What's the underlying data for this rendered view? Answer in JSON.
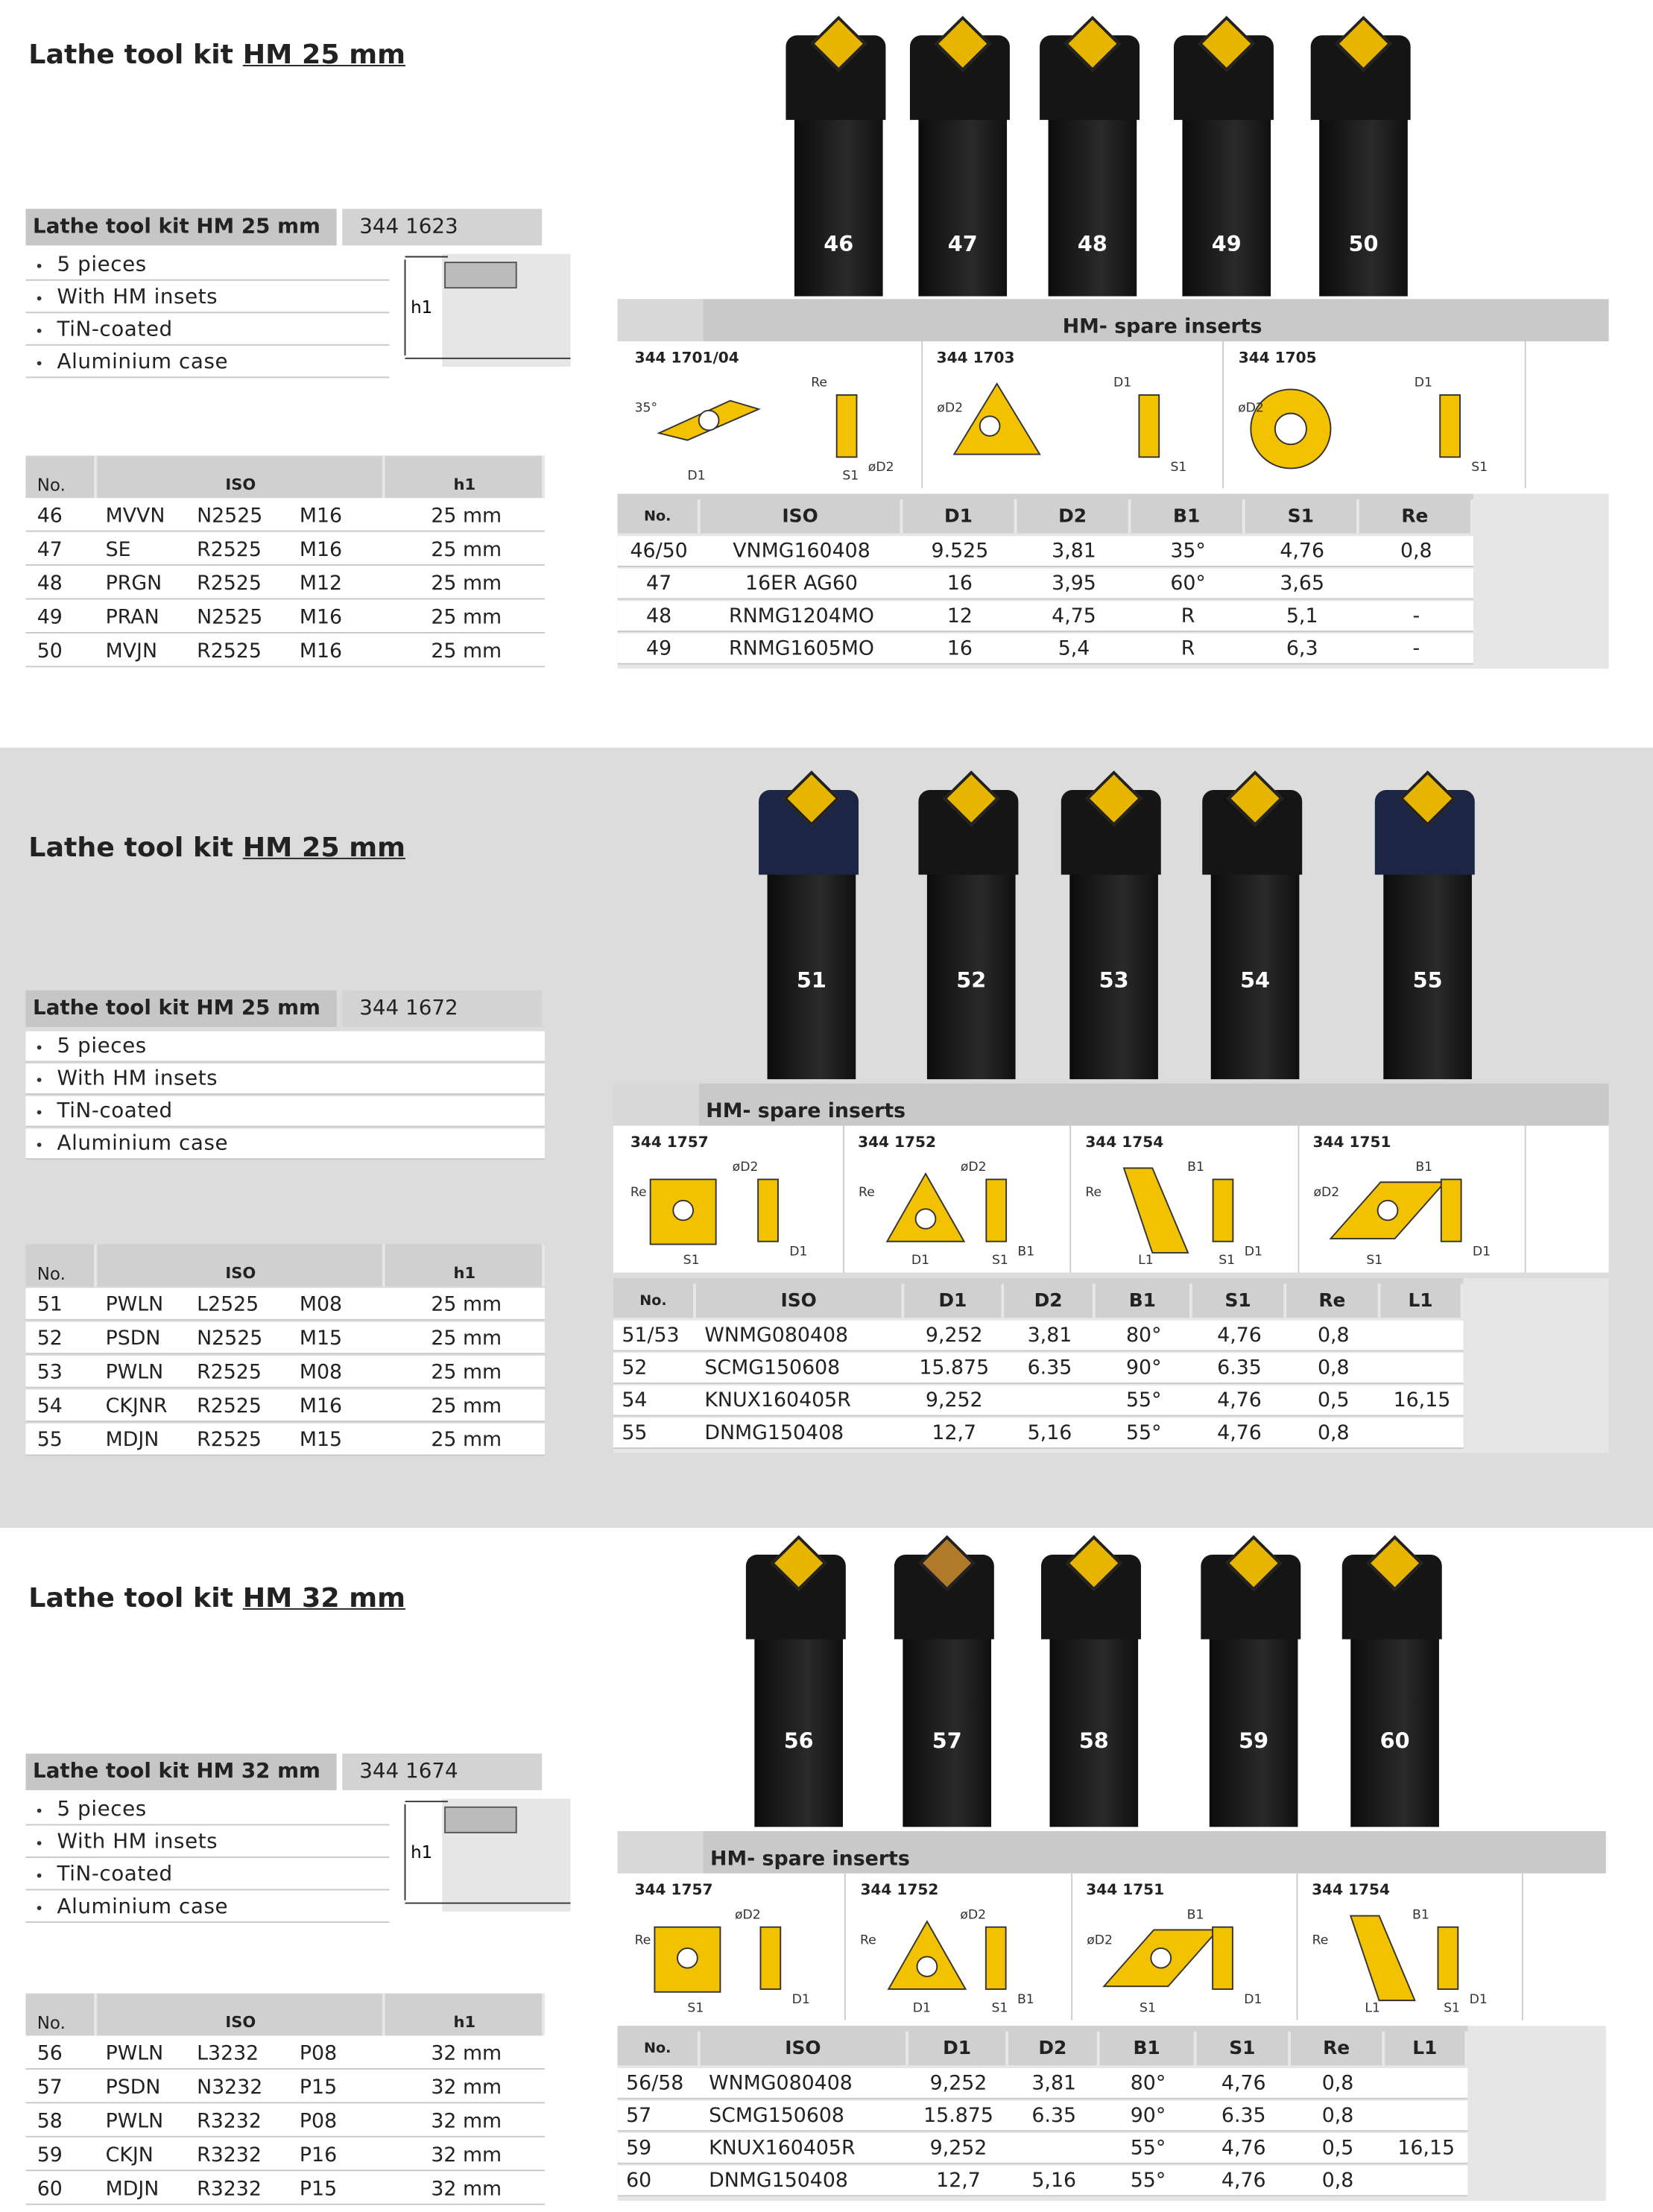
{
  "sections": [
    {
      "title_prefix": "Lathe tool kit",
      "title_size": "HM 25 mm",
      "kit": {
        "name": "Lathe tool kit HM 25 mm",
        "article": "344 1623",
        "features": [
          "5 pieces",
          "With HM insets",
          "TiN-coated",
          "Aluminium case"
        ],
        "h_label": "h1"
      },
      "tools": {
        "headers": [
          "No.",
          "ISO",
          "h1"
        ],
        "rows": [
          [
            "46",
            "MVVN",
            "N2525",
            "M16",
            "25 mm"
          ],
          [
            "47",
            "SE",
            "R2525",
            "M16",
            "25 mm"
          ],
          [
            "48",
            "PRGN",
            "R2525",
            "M12",
            "25 mm"
          ],
          [
            "49",
            "PRAN",
            "N2525",
            "M16",
            "25 mm"
          ],
          [
            "50",
            "MVJN",
            "R2525",
            "M16",
            "25 mm"
          ]
        ]
      },
      "tool_labels": [
        "46",
        "47",
        "48",
        "49",
        "50"
      ],
      "inserts": {
        "header": "HM- spare inserts",
        "drawings": [
          {
            "code": "344 1701/04",
            "labels": [
              "35°",
              "Re",
              "øD2",
              "D1",
              "S1"
            ]
          },
          {
            "code": "344 1703",
            "labels": [
              "øD2",
              "D1",
              "S1"
            ]
          },
          {
            "code": "344 1705",
            "labels": [
              "øD2",
              "D1",
              "S1"
            ]
          }
        ],
        "headers": [
          "No.",
          "ISO",
          "D1",
          "D2",
          "B1",
          "S1",
          "Re"
        ],
        "rows": [
          [
            "46/50",
            "VNMG160408",
            "9.525",
            "3,81",
            "35°",
            "4,76",
            "0,8"
          ],
          [
            "47",
            "16ER AG60",
            "16",
            "3,95",
            "60°",
            "3,65",
            null
          ],
          [
            "48",
            "RNMG1204MO",
            "12",
            "4,75",
            "R",
            "5,1",
            "-"
          ],
          [
            "49",
            "RNMG1605MO",
            "16",
            "5,4",
            "R",
            "6,3",
            "-"
          ]
        ]
      }
    },
    {
      "title_prefix": "Lathe tool kit",
      "title_size": "HM 25 mm",
      "kit": {
        "name": "Lathe tool kit HM 25 mm",
        "article": "344 1672",
        "features": [
          "5 pieces",
          "With HM insets",
          "TiN-coated",
          "Aluminium case"
        ]
      },
      "tools": {
        "headers": [
          "No.",
          "ISO",
          "h1"
        ],
        "rows": [
          [
            "51",
            "PWLN",
            "L2525",
            "M08",
            "25 mm"
          ],
          [
            "52",
            "PSDN",
            "N2525",
            "M15",
            "25 mm"
          ],
          [
            "53",
            "PWLN",
            "R2525",
            "M08",
            "25 mm"
          ],
          [
            "54",
            "CKJNR",
            "R2525",
            "M16",
            "25 mm"
          ],
          [
            "55",
            "MDJN",
            "R2525",
            "M15",
            "25 mm"
          ]
        ]
      },
      "tool_labels": [
        "51",
        "52",
        "53",
        "54",
        "55"
      ],
      "inserts": {
        "header": "HM- spare inserts",
        "drawings": [
          {
            "code": "344 1757",
            "labels": [
              "Re",
              "øD2",
              "D1",
              "S1"
            ]
          },
          {
            "code": "344 1752",
            "labels": [
              "Re",
              "øD2",
              "B1",
              "D1",
              "S1"
            ]
          },
          {
            "code": "344 1754",
            "labels": [
              "Re",
              "B1",
              "D1",
              "L1",
              "S1"
            ]
          },
          {
            "code": "344 1751",
            "labels": [
              "øD2",
              "B1",
              "D1",
              "S1"
            ]
          }
        ],
        "headers": [
          "No.",
          "ISO",
          "D1",
          "D2",
          "B1",
          "S1",
          "Re",
          "L1"
        ],
        "rows": [
          [
            "51/53",
            "WNMG080408",
            "9,252",
            "3,81",
            "80°",
            "4,76",
            "0,8",
            null
          ],
          [
            "52",
            "SCMG150608",
            "15.875",
            "6.35",
            "90°",
            "6.35",
            "0,8",
            null
          ],
          [
            "54",
            "KNUX160405R",
            "9,252",
            null,
            "55°",
            "4,76",
            "0,5",
            "16,15"
          ],
          [
            "55",
            "DNMG150408",
            "12,7",
            "5,16",
            "55°",
            "4,76",
            "0,8",
            null
          ]
        ]
      }
    },
    {
      "title_prefix": "Lathe tool kit",
      "title_size": "HM 32 mm",
      "kit": {
        "name": "Lathe tool kit HM 32 mm",
        "article": "344 1674",
        "features": [
          "5 pieces",
          "With HM insets",
          "TiN-coated",
          "Aluminium case"
        ],
        "h_label": "h1"
      },
      "tools": {
        "headers": [
          "No.",
          "ISO",
          "h1"
        ],
        "rows": [
          [
            "56",
            "PWLN",
            "L3232",
            "P08",
            "32 mm"
          ],
          [
            "57",
            "PSDN",
            "N3232",
            "P15",
            "32 mm"
          ],
          [
            "58",
            "PWLN",
            "R3232",
            "P08",
            "32 mm"
          ],
          [
            "59",
            "CKJN",
            "R3232",
            "P16",
            "32 mm"
          ],
          [
            "60",
            "MDJN",
            "R3232",
            "P15",
            "32 mm"
          ]
        ]
      },
      "tool_labels": [
        "56",
        "57",
        "58",
        "59",
        "60"
      ],
      "inserts": {
        "header": "HM- spare inserts",
        "drawings": [
          {
            "code": "344 1757",
            "labels": [
              "Re",
              "øD2",
              "D1",
              "S1"
            ]
          },
          {
            "code": "344 1752",
            "labels": [
              "Re",
              "øD2",
              "B1",
              "D1",
              "S1"
            ]
          },
          {
            "code": "344 1751",
            "labels": [
              "øD2",
              "B1",
              "D1",
              "S1"
            ]
          },
          {
            "code": "344 1754",
            "labels": [
              "Re",
              "B1",
              "D1",
              "L1",
              "S1"
            ]
          }
        ],
        "headers": [
          "No.",
          "ISO",
          "D1",
          "D2",
          "B1",
          "S1",
          "Re",
          "L1"
        ],
        "rows": [
          [
            "56/58",
            "WNMG080408",
            "9,252",
            "3,81",
            "80°",
            "4,76",
            "0,8",
            null
          ],
          [
            "57",
            "SCMG150608",
            "15.875",
            "6.35",
            "90°",
            "6.35",
            "0,8",
            null
          ],
          [
            "59",
            "KNUX160405R",
            "9,252",
            null,
            "55°",
            "4,76",
            "0,5",
            "16,15"
          ],
          [
            "60",
            "DNMG150408",
            "12,7",
            "5,16",
            "55°",
            "4,76",
            "0,8",
            null
          ]
        ]
      }
    }
  ]
}
